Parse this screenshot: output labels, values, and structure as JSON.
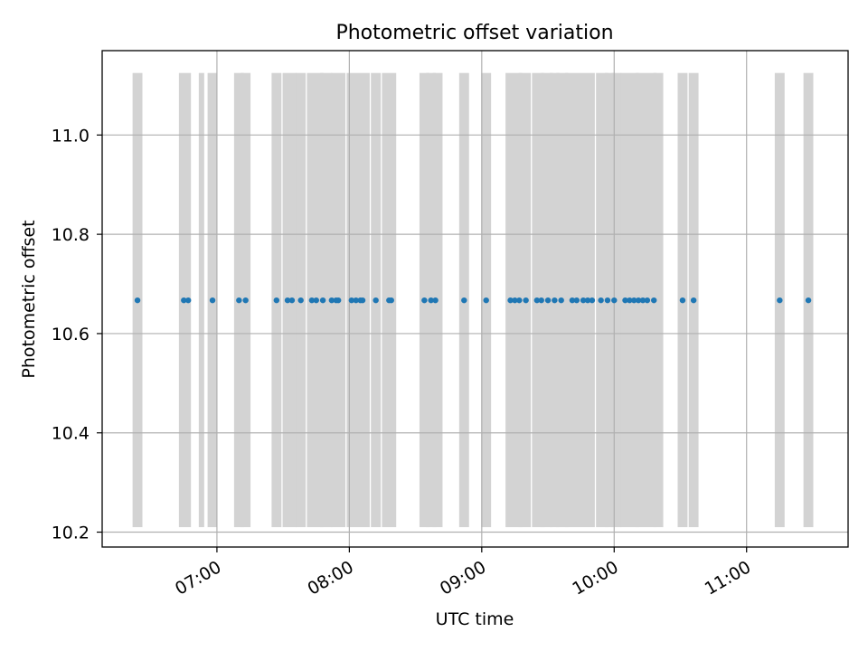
{
  "chart_data": {
    "type": "scatter",
    "title": "Photometric offset variation",
    "xlabel": "UTC time",
    "ylabel": "Photometric offset",
    "x_axis_type": "time",
    "xlim": [
      "06:08",
      "11:46"
    ],
    "ylim": [
      10.17,
      11.17
    ],
    "x_ticks": [
      "07:00",
      "08:00",
      "09:00",
      "10:00",
      "11:00"
    ],
    "y_ticks": [
      "10.2",
      "10.4",
      "10.6",
      "10.8",
      "11.0"
    ],
    "y_tick_values": [
      10.2,
      10.4,
      10.6,
      10.8,
      11.0
    ],
    "grid": true,
    "legend": "none",
    "marker_color": "#1f77b4",
    "band_color": "#d3d3d3",
    "exposure_bands": {
      "y_range": [
        10.21,
        11.125
      ],
      "spans": [
        [
          "06:23",
          "06:25"
        ],
        [
          "06:44",
          "06:47"
        ],
        [
          "06:53",
          "06:53"
        ],
        [
          "06:57",
          "06:59"
        ],
        [
          "07:09",
          "07:11"
        ],
        [
          "07:12",
          "07:14"
        ],
        [
          "07:26",
          "07:28"
        ],
        [
          "07:31",
          "07:35"
        ],
        [
          "07:37",
          "07:39"
        ],
        [
          "07:42",
          "07:47"
        ],
        [
          "07:48",
          "07:51"
        ],
        [
          "07:53",
          "07:57"
        ],
        [
          "08:00",
          "08:08"
        ],
        [
          "08:11",
          "08:13"
        ],
        [
          "08:16",
          "08:20"
        ],
        [
          "08:33",
          "08:35"
        ],
        [
          "08:36",
          "08:38"
        ],
        [
          "08:39",
          "08:41"
        ],
        [
          "08:51",
          "08:53"
        ],
        [
          "09:01",
          "09:03"
        ],
        [
          "09:12",
          "09:17"
        ],
        [
          "09:18",
          "09:21"
        ],
        [
          "09:24",
          "09:27"
        ],
        [
          "09:28",
          "09:31"
        ],
        [
          "09:32",
          "09:34"
        ],
        [
          "09:35",
          "09:38"
        ],
        [
          "09:39",
          "09:50"
        ],
        [
          "09:53",
          "09:56"
        ],
        [
          "09:57",
          "09:59"
        ],
        [
          "10:00",
          "10:02"
        ],
        [
          "10:04",
          "10:10"
        ],
        [
          "10:11",
          "10:18"
        ],
        [
          "10:19",
          "10:21"
        ],
        [
          "10:30",
          "10:32"
        ],
        [
          "10:35",
          "10:37"
        ],
        [
          "11:14",
          "11:16"
        ],
        [
          "11:27",
          "11:29"
        ]
      ]
    },
    "points": {
      "y": 10.667,
      "x": [
        "06:24",
        "06:45",
        "06:47",
        "06:58",
        "07:10",
        "07:13",
        "07:27",
        "07:32",
        "07:34",
        "07:38",
        "07:43",
        "07:45",
        "07:48",
        "07:52",
        "07:54",
        "07:55",
        "08:01",
        "08:03",
        "08:05",
        "08:06",
        "08:12",
        "08:18",
        "08:19",
        "08:34",
        "08:37",
        "08:39",
        "08:52",
        "09:02",
        "09:13",
        "09:15",
        "09:17",
        "09:20",
        "09:25",
        "09:27",
        "09:30",
        "09:33",
        "09:36",
        "09:41",
        "09:43",
        "09:46",
        "09:48",
        "09:50",
        "09:54",
        "09:57",
        "10:00",
        "10:05",
        "10:07",
        "10:09",
        "10:11",
        "10:13",
        "10:15",
        "10:18",
        "10:31",
        "10:36",
        "11:15",
        "11:28"
      ]
    }
  }
}
